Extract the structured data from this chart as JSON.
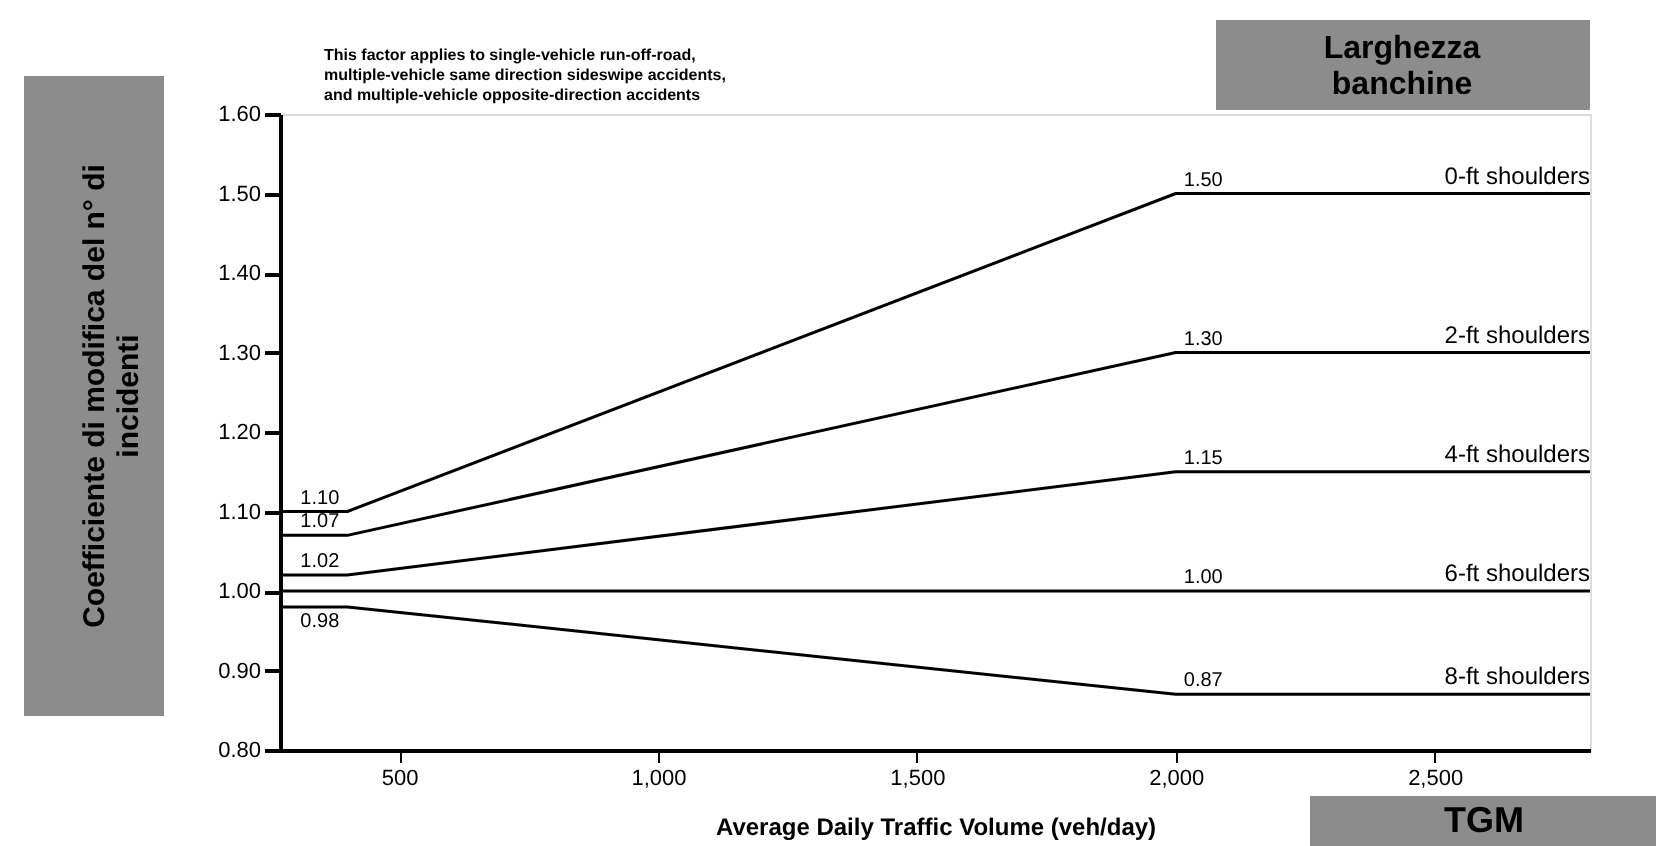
{
  "chart_data": {
    "type": "line",
    "ylabel": "Coefficiente di modifica del n° di incidenti",
    "xlabel": "Average Daily Traffic Volume (veh/day)",
    "legend_title": "Larghezza banchine",
    "annotations": [
      "This factor applies to single-vehicle run-off-road,\nmultiple-vehicle same direction sideswipe accidents,\nand multiple-vehicle opposite-direction accidents",
      "TGM"
    ],
    "xlim": [
      270,
      2800
    ],
    "ylim": [
      0.8,
      1.6
    ],
    "xticks": [
      500,
      {
        "value": 1000,
        "label": "1,000"
      },
      {
        "value": 1500,
        "label": "1,500"
      },
      {
        "value": 2000,
        "label": "2,000"
      },
      {
        "value": 2500,
        "label": "2,500"
      }
    ],
    "yticks": [
      {
        "value": 0.8,
        "label": "0.80"
      },
      {
        "value": 0.9,
        "label": "0.90"
      },
      {
        "value": 1.0,
        "label": "1.00"
      },
      {
        "value": 1.1,
        "label": "1.10"
      },
      {
        "value": 1.2,
        "label": "1.20"
      },
      {
        "value": 1.3,
        "label": "1.30"
      },
      {
        "value": 1.4,
        "label": "1.40"
      },
      {
        "value": 1.5,
        "label": "1.50"
      },
      {
        "value": 1.6,
        "label": "1.60"
      }
    ],
    "x": [
      270,
      400,
      2000,
      2800
    ],
    "grid": false,
    "legend": false,
    "marker": "none",
    "line_style": "solid",
    "series": [
      {
        "name": "0-ft shoulders",
        "color": "#000000",
        "values": [
          1.1,
          1.1,
          1.5,
          1.5
        ],
        "value_labels": [
          null,
          "1.10",
          "1.50",
          null
        ]
      },
      {
        "name": "2-ft shoulders",
        "color": "#000000",
        "values": [
          1.07,
          1.07,
          1.3,
          1.3
        ],
        "value_labels": [
          null,
          "1.07",
          "1.30",
          null
        ]
      },
      {
        "name": "4-ft shoulders",
        "color": "#000000",
        "values": [
          1.02,
          1.02,
          1.15,
          1.15
        ],
        "value_labels": [
          null,
          "1.02",
          "1.15",
          null
        ]
      },
      {
        "name": "6-ft shoulders",
        "color": "#000000",
        "values": [
          1.0,
          1.0,
          1.0,
          1.0
        ],
        "value_labels": [
          null,
          null,
          "1.00",
          null
        ]
      },
      {
        "name": "8-ft shoulders",
        "color": "#000000",
        "values": [
          0.98,
          0.98,
          0.87,
          0.87
        ],
        "value_labels": [
          null,
          "0.98",
          "0.87",
          null
        ]
      }
    ]
  }
}
